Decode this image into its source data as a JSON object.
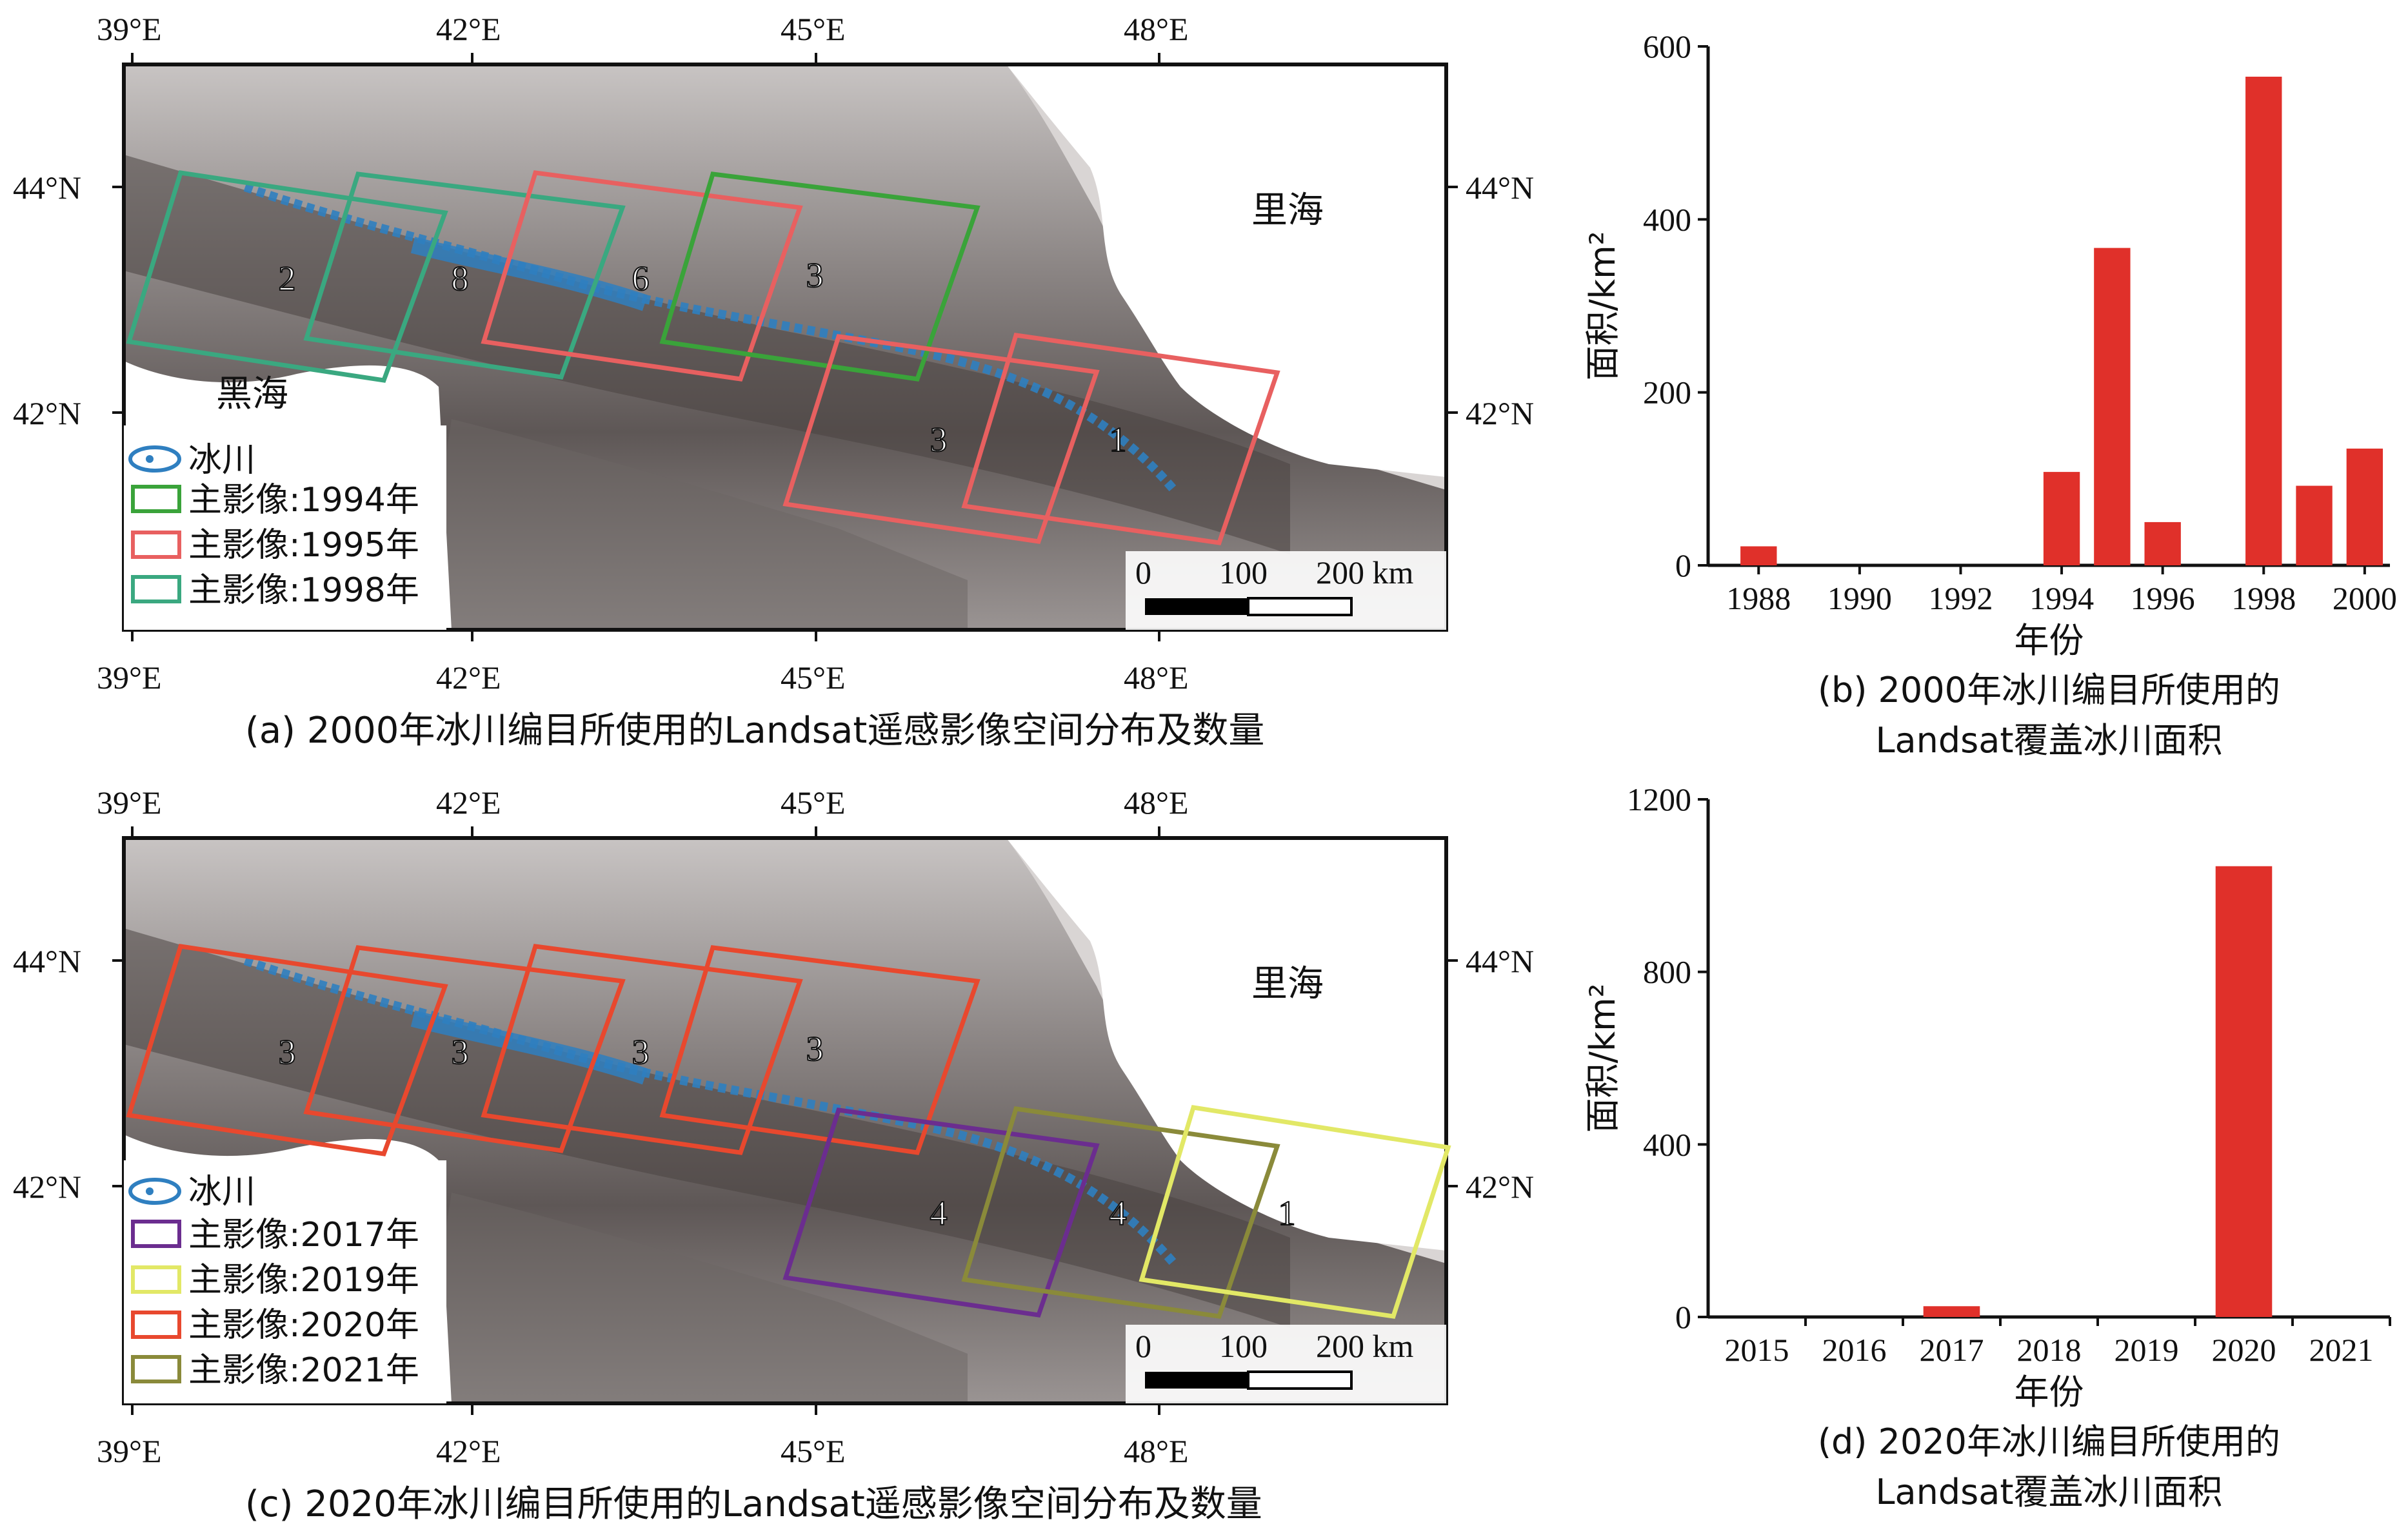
{
  "top_map": {
    "lon_ticks": [
      "39°E",
      "42°E",
      "45°E",
      "48°E"
    ],
    "lat_ticks": [
      "44°N",
      "42°N"
    ],
    "sea_east": "里海",
    "sea_west": "黑海",
    "scale": {
      "zero": "0",
      "mid": "100",
      "end": "200 km"
    },
    "legend": [
      {
        "label": "冰川",
        "kind": "glacier"
      },
      {
        "label": "主影像:1994年",
        "color": "#3aa33a"
      },
      {
        "label": "主影像:1995年",
        "color": "#e86060"
      },
      {
        "label": "主影像:1998年",
        "color": "#3aa880"
      }
    ],
    "frames": [
      {
        "count": "2",
        "color": "#3aa880"
      },
      {
        "count": "8",
        "color": "#3aa880"
      },
      {
        "count": "6",
        "color": "#e86060"
      },
      {
        "count": "3",
        "color": "#3aa33a"
      },
      {
        "count": "3",
        "color": "#e86060"
      },
      {
        "count": "1",
        "color": "#e86060"
      }
    ],
    "caption": "(a) 2000年冰川编目所使用的Landsat遥感影像空间分布及数量"
  },
  "bottom_map": {
    "lon_ticks": [
      "39°E",
      "42°E",
      "45°E",
      "48°E"
    ],
    "lat_ticks": [
      "44°N",
      "42°N"
    ],
    "sea_east": "里海",
    "sea_west": "黑海",
    "scale": {
      "zero": "0",
      "mid": "100",
      "end": "200 km"
    },
    "legend": [
      {
        "label": "冰川",
        "kind": "glacier"
      },
      {
        "label": "主影像:2017年",
        "color": "#6b2d8f"
      },
      {
        "label": "主影像:2019年",
        "color": "#e2e866"
      },
      {
        "label": "主影像:2020年",
        "color": "#e8482e"
      },
      {
        "label": "主影像:2021年",
        "color": "#8a8a3a"
      }
    ],
    "frames": [
      {
        "count": "3",
        "color": "#e8482e"
      },
      {
        "count": "3",
        "color": "#e8482e"
      },
      {
        "count": "3",
        "color": "#e8482e"
      },
      {
        "count": "3",
        "color": "#e8482e"
      },
      {
        "count": "4",
        "color": "#6b2d8f"
      },
      {
        "count": "4",
        "color": "#8a8a3a"
      },
      {
        "count": "1",
        "color": "#e2e866"
      }
    ],
    "caption": "(c) 2020年冰川编目所使用的Landsat遥感影像空间分布及数量"
  },
  "chart_data": [
    {
      "type": "bar",
      "ylabel": "面积/km²",
      "xlabel": "年份",
      "title": "(b) 2000年冰川编目所使用的",
      "title_line2": "Landsat覆盖冰川面积",
      "xlim": [
        1987,
        2000.5
      ],
      "ylim": [
        0,
        600
      ],
      "yticks": [
        "0",
        "200",
        "400",
        "600"
      ],
      "xticks": [
        "1988",
        "1990",
        "1992",
        "1994",
        "1996",
        "1998",
        "2000"
      ],
      "x": [
        1988,
        1994,
        1995,
        1996,
        1998,
        1999,
        2000
      ],
      "values": [
        22,
        108,
        367,
        50,
        565,
        92,
        135
      ],
      "bar_color": "#e0302a"
    },
    {
      "type": "bar",
      "ylabel": "面积/km²",
      "xlabel": "年份",
      "title": "(d) 2020年冰川编目所使用的",
      "title_line2": "Landsat覆盖冰川面积",
      "ylim": [
        0,
        1200
      ],
      "yticks": [
        "0",
        "400",
        "800",
        "1200"
      ],
      "categories": [
        "2015",
        "2016",
        "2017",
        "2018",
        "2019",
        "2020",
        "2021"
      ],
      "values": [
        0,
        0,
        25,
        0,
        0,
        1045,
        0
      ],
      "bar_color": "#e0302a"
    }
  ]
}
